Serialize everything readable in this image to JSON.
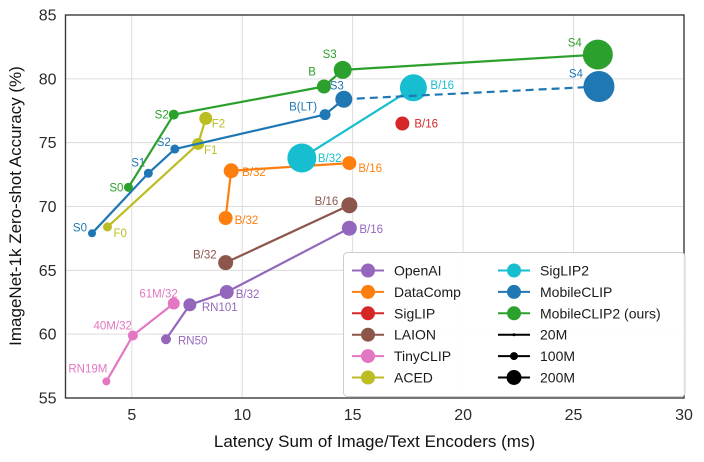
{
  "chart_data": {
    "type": "scatter",
    "title": "",
    "xlabel": "Latency Sum of Image/Text Encoders (ms)",
    "ylabel": "ImageNet-1k Zero-shot Accuracy (%)",
    "xlim": [
      2,
      30
    ],
    "ylim": [
      55,
      85
    ],
    "xticks": [
      5,
      10,
      15,
      20,
      25,
      30
    ],
    "yticks": [
      55,
      60,
      65,
      70,
      75,
      80,
      85
    ],
    "grid": true,
    "legend_position": "lower right",
    "style": {
      "grid_color": "#dcdcdc",
      "spine_color": "#3a3a3a",
      "tick_color": "#2b2b2b",
      "legend_border": "#cccccc",
      "legend_text": "#1a1a1a",
      "size_marker_color": "#000000"
    },
    "series": [
      {
        "name": "OpenAI",
        "color": "#9467bd",
        "points": [
          {
            "label": "RN50",
            "x": 6.55,
            "y": 59.6,
            "r": 5,
            "anchor": "start",
            "dx": 12,
            "dy": 5
          },
          {
            "label": "RN101",
            "x": 7.63,
            "y": 62.3,
            "r": 6.5,
            "anchor": "start",
            "dx": 12,
            "dy": 6
          },
          {
            "label": "B/32",
            "x": 9.3,
            "y": 63.3,
            "r": 7,
            "anchor": "start",
            "dx": 9,
            "dy": 6
          },
          {
            "label": "B/16",
            "x": 14.85,
            "y": 68.3,
            "r": 7.5,
            "anchor": "start",
            "dx": 10,
            "dy": 5
          }
        ]
      },
      {
        "name": "DataComp",
        "color": "#ff7f0e",
        "points": [
          {
            "label": "B/32",
            "x": 9.25,
            "y": 69.1,
            "r": 7,
            "anchor": "start",
            "dx": 9,
            "dy": 6
          },
          {
            "label": "B/32",
            "x": 9.5,
            "y": 72.8,
            "r": 7.5,
            "anchor": "start",
            "dx": 11,
            "dy": 5
          },
          {
            "label": "B/16",
            "x": 14.85,
            "y": 73.4,
            "r": 7,
            "anchor": "start",
            "dx": 9,
            "dy": 9
          }
        ]
      },
      {
        "name": "LAION",
        "color": "#8c564b",
        "points": [
          {
            "label": "B/32",
            "x": 9.25,
            "y": 65.6,
            "r": 7.5,
            "anchor": "end",
            "dx": -9,
            "dy": -4
          },
          {
            "label": "B/16",
            "x": 14.85,
            "y": 70.1,
            "r": 8,
            "anchor": "end",
            "dx": -11,
            "dy": 0
          }
        ]
      },
      {
        "name": "TinyCLIP",
        "color": "#e377c2",
        "points": [
          {
            "label": "RN19M",
            "x": 3.85,
            "y": 56.3,
            "r": 4,
            "anchor": "end",
            "dx": 1,
            "dy": -9
          },
          {
            "label": "40M/32",
            "x": 5.05,
            "y": 59.9,
            "r": 5,
            "anchor": "end",
            "dx": -1,
            "dy": -6
          },
          {
            "label": "61M/32",
            "x": 6.9,
            "y": 62.4,
            "r": 6,
            "anchor": "end",
            "dx": 4,
            "dy": -6
          }
        ]
      },
      {
        "name": "ACED",
        "color": "#bcbd22",
        "points": [
          {
            "label": "F0",
            "x": 3.9,
            "y": 68.4,
            "r": 4.5,
            "anchor": "start",
            "dx": 6,
            "dy": 10
          },
          {
            "label": "F1",
            "x": 8.0,
            "y": 74.9,
            "r": 6,
            "anchor": "start",
            "dx": 6,
            "dy": 10
          },
          {
            "label": "F2",
            "x": 8.35,
            "y": 76.9,
            "r": 6.5,
            "anchor": "start",
            "dx": 6,
            "dy": 9
          }
        ]
      },
      {
        "name": "SigLIP",
        "color": "#d62728",
        "points": [
          {
            "label": "B/16",
            "x": 17.25,
            "y": 76.5,
            "r": 7,
            "anchor": "start",
            "dx": 12,
            "dy": 4
          }
        ]
      },
      {
        "name": "SigLIP2",
        "color": "#17becf",
        "points": [
          {
            "label": "B/32",
            "x": 12.7,
            "y": 73.8,
            "r": 14.5,
            "anchor": "start",
            "dx": 16,
            "dy": 4
          },
          {
            "label": "B/16",
            "x": 17.75,
            "y": 79.3,
            "r": 13.5,
            "anchor": "start",
            "dx": 17,
            "dy": 1
          }
        ]
      },
      {
        "name": "MobileCLIP",
        "color": "#1f77b4",
        "dash_from_index": 4,
        "points": [
          {
            "label": "S0",
            "x": 3.2,
            "y": 67.9,
            "r": 4,
            "anchor": "end",
            "dx": -5,
            "dy": -2
          },
          {
            "label": "S1",
            "x": 5.75,
            "y": 72.6,
            "r": 4.5,
            "anchor": "end",
            "dx": -3,
            "dy": -7
          },
          {
            "label": "S2",
            "x": 6.95,
            "y": 74.5,
            "r": 4.5,
            "anchor": "end",
            "dx": -4,
            "dy": -3
          },
          {
            "label": "B(LT)",
            "x": 13.75,
            "y": 77.2,
            "r": 5.5,
            "anchor": "end",
            "dx": -8,
            "dy": -4
          },
          {
            "label": "S3",
            "x": 14.6,
            "y": 78.4,
            "r": 8.5,
            "anchor": "end",
            "dx": 0,
            "dy": -10
          },
          {
            "label": "S4",
            "x": 26.15,
            "y": 79.4,
            "r": 15.5,
            "anchor": "end",
            "dx": -16,
            "dy": -9
          }
        ]
      },
      {
        "name": "MobileCLIP2 (ours)",
        "color": "#2ca02c",
        "points": [
          {
            "label": "S0",
            "x": 4.85,
            "y": 71.5,
            "r": 4.5,
            "anchor": "end",
            "dx": -5,
            "dy": 4
          },
          {
            "label": "S2",
            "x": 6.9,
            "y": 77.2,
            "r": 5,
            "anchor": "end",
            "dx": -5,
            "dy": 4
          },
          {
            "label": "B",
            "x": 13.7,
            "y": 79.4,
            "r": 7,
            "anchor": "end",
            "dx": -8,
            "dy": -11
          },
          {
            "label": "S3",
            "x": 14.55,
            "y": 80.7,
            "r": 9,
            "anchor": "end",
            "dx": -6,
            "dy": -12
          },
          {
            "label": "S4",
            "x": 26.1,
            "y": 81.9,
            "r": 15,
            "anchor": "end",
            "dx": -16,
            "dy": -8
          }
        ]
      }
    ],
    "legend": {
      "columns": [
        [
          {
            "label": "OpenAI",
            "color": "#9467bd",
            "type": "series"
          },
          {
            "label": "DataComp",
            "color": "#ff7f0e",
            "type": "series"
          },
          {
            "label": "SigLIP",
            "color": "#d62728",
            "type": "series"
          },
          {
            "label": "LAION",
            "color": "#8c564b",
            "type": "series"
          },
          {
            "label": "TinyCLIP",
            "color": "#e377c2",
            "type": "series"
          },
          {
            "label": "ACED",
            "color": "#bcbd22",
            "type": "series"
          }
        ],
        [
          {
            "label": "SigLIP2",
            "color": "#17becf",
            "type": "series"
          },
          {
            "label": "MobileCLIP",
            "color": "#1f77b4",
            "type": "series"
          },
          {
            "label": "MobileCLIP2 (ours)",
            "color": "#2ca02c",
            "type": "series"
          },
          {
            "label": "20M",
            "color": "#000000",
            "type": "size",
            "r": 1.5
          },
          {
            "label": "100M",
            "color": "#000000",
            "type": "size",
            "r": 4
          },
          {
            "label": "200M",
            "color": "#000000",
            "type": "size",
            "r": 7.5
          }
        ]
      ]
    }
  }
}
